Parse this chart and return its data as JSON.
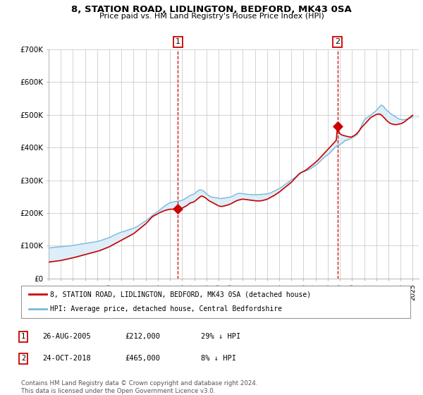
{
  "title": "8, STATION ROAD, LIDLINGTON, BEDFORD, MK43 0SA",
  "subtitle": "Price paid vs. HM Land Registry's House Price Index (HPI)",
  "ylim": [
    0,
    700000
  ],
  "yticks": [
    0,
    100000,
    200000,
    300000,
    400000,
    500000,
    600000,
    700000
  ],
  "ytick_labels": [
    "£0",
    "£100K",
    "£200K",
    "£300K",
    "£400K",
    "£500K",
    "£600K",
    "£700K"
  ],
  "background_color": "#ffffff",
  "plot_bg_color": "#ffffff",
  "grid_color": "#cccccc",
  "hpi_color": "#7ab8d9",
  "price_color": "#cc0000",
  "fill_color": "#ddeef8",
  "purchase1_x": 2005.65,
  "purchase1_y": 212000,
  "purchase2_x": 2018.8,
  "purchase2_y": 465000,
  "legend_label1": "8, STATION ROAD, LIDLINGTON, BEDFORD, MK43 0SA (detached house)",
  "legend_label2": "HPI: Average price, detached house, Central Bedfordshire",
  "table_row1": [
    "1",
    "26-AUG-2005",
    "£212,000",
    "29% ↓ HPI"
  ],
  "table_row2": [
    "2",
    "24-OCT-2018",
    "£465,000",
    "8% ↓ HPI"
  ],
  "footnote": "Contains HM Land Registry data © Crown copyright and database right 2024.\nThis data is licensed under the Open Government Licence v3.0.",
  "xlim_left": 1995.0,
  "xlim_right": 2025.5,
  "hpi_x": [
    1995.0,
    1995.083,
    1995.167,
    1995.25,
    1995.333,
    1995.417,
    1995.5,
    1995.583,
    1995.667,
    1995.75,
    1995.833,
    1995.917,
    1996.0,
    1996.083,
    1996.167,
    1996.25,
    1996.333,
    1996.417,
    1996.5,
    1996.583,
    1996.667,
    1996.75,
    1996.833,
    1996.917,
    1997.0,
    1997.083,
    1997.167,
    1997.25,
    1997.333,
    1997.417,
    1997.5,
    1997.583,
    1997.667,
    1997.75,
    1997.833,
    1997.917,
    1998.0,
    1998.083,
    1998.167,
    1998.25,
    1998.333,
    1998.417,
    1998.5,
    1998.583,
    1998.667,
    1998.75,
    1998.833,
    1998.917,
    1999.0,
    1999.083,
    1999.167,
    1999.25,
    1999.333,
    1999.417,
    1999.5,
    1999.583,
    1999.667,
    1999.75,
    1999.833,
    1999.917,
    2000.0,
    2000.083,
    2000.167,
    2000.25,
    2000.333,
    2000.417,
    2000.5,
    2000.583,
    2000.667,
    2000.75,
    2000.833,
    2000.917,
    2001.0,
    2001.083,
    2001.167,
    2001.25,
    2001.333,
    2001.417,
    2001.5,
    2001.583,
    2001.667,
    2001.75,
    2001.833,
    2001.917,
    2002.0,
    2002.083,
    2002.167,
    2002.25,
    2002.333,
    2002.417,
    2002.5,
    2002.583,
    2002.667,
    2002.75,
    2002.833,
    2002.917,
    2003.0,
    2003.083,
    2003.167,
    2003.25,
    2003.333,
    2003.417,
    2003.5,
    2003.583,
    2003.667,
    2003.75,
    2003.833,
    2003.917,
    2004.0,
    2004.083,
    2004.167,
    2004.25,
    2004.333,
    2004.417,
    2004.5,
    2004.583,
    2004.667,
    2004.75,
    2004.833,
    2004.917,
    2005.0,
    2005.083,
    2005.167,
    2005.25,
    2005.333,
    2005.417,
    2005.5,
    2005.583,
    2005.667,
    2005.75,
    2005.833,
    2005.917,
    2006.0,
    2006.083,
    2006.167,
    2006.25,
    2006.333,
    2006.417,
    2006.5,
    2006.583,
    2006.667,
    2006.75,
    2006.833,
    2006.917,
    2007.0,
    2007.083,
    2007.167,
    2007.25,
    2007.333,
    2007.417,
    2007.5,
    2007.583,
    2007.667,
    2007.75,
    2007.833,
    2007.917,
    2008.0,
    2008.083,
    2008.167,
    2008.25,
    2008.333,
    2008.417,
    2008.5,
    2008.583,
    2008.667,
    2008.75,
    2008.833,
    2008.917,
    2009.0,
    2009.083,
    2009.167,
    2009.25,
    2009.333,
    2009.417,
    2009.5,
    2009.583,
    2009.667,
    2009.75,
    2009.833,
    2009.917,
    2010.0,
    2010.083,
    2010.167,
    2010.25,
    2010.333,
    2010.417,
    2010.5,
    2010.583,
    2010.667,
    2010.75,
    2010.833,
    2010.917,
    2011.0,
    2011.083,
    2011.167,
    2011.25,
    2011.333,
    2011.417,
    2011.5,
    2011.583,
    2011.667,
    2011.75,
    2011.833,
    2011.917,
    2012.0,
    2012.083,
    2012.167,
    2012.25,
    2012.333,
    2012.417,
    2012.5,
    2012.583,
    2012.667,
    2012.75,
    2012.833,
    2012.917,
    2013.0,
    2013.083,
    2013.167,
    2013.25,
    2013.333,
    2013.417,
    2013.5,
    2013.583,
    2013.667,
    2013.75,
    2013.833,
    2013.917,
    2014.0,
    2014.083,
    2014.167,
    2014.25,
    2014.333,
    2014.417,
    2014.5,
    2014.583,
    2014.667,
    2014.75,
    2014.833,
    2014.917,
    2015.0,
    2015.083,
    2015.167,
    2015.25,
    2015.333,
    2015.417,
    2015.5,
    2015.583,
    2015.667,
    2015.75,
    2015.833,
    2015.917,
    2016.0,
    2016.083,
    2016.167,
    2016.25,
    2016.333,
    2016.417,
    2016.5,
    2016.583,
    2016.667,
    2016.75,
    2016.833,
    2016.917,
    2017.0,
    2017.083,
    2017.167,
    2017.25,
    2017.333,
    2017.417,
    2017.5,
    2017.583,
    2017.667,
    2017.75,
    2017.833,
    2017.917,
    2018.0,
    2018.083,
    2018.167,
    2018.25,
    2018.333,
    2018.417,
    2018.5,
    2018.583,
    2018.667,
    2018.75,
    2018.833,
    2018.917,
    2019.0,
    2019.083,
    2019.167,
    2019.25,
    2019.333,
    2019.417,
    2019.5,
    2019.583,
    2019.667,
    2019.75,
    2019.833,
    2019.917,
    2020.0,
    2020.083,
    2020.167,
    2020.25,
    2020.333,
    2020.417,
    2020.5,
    2020.583,
    2020.667,
    2020.75,
    2020.833,
    2020.917,
    2021.0,
    2021.083,
    2021.167,
    2021.25,
    2021.333,
    2021.417,
    2021.5,
    2021.583,
    2021.667,
    2021.75,
    2021.833,
    2021.917,
    2022.0,
    2022.083,
    2022.167,
    2022.25,
    2022.333,
    2022.417,
    2022.5,
    2022.583,
    2022.667,
    2022.75,
    2022.833,
    2022.917,
    2023.0,
    2023.083,
    2023.167,
    2023.25,
    2023.333,
    2023.417,
    2023.5,
    2023.583,
    2023.667,
    2023.75,
    2023.833,
    2023.917,
    2024.0,
    2024.083,
    2024.167,
    2024.25,
    2024.333,
    2024.417,
    2024.5,
    2024.583,
    2024.667,
    2024.75,
    2024.833,
    2024.917,
    2025.0
  ],
  "hpi_y": [
    93000,
    93500,
    94000,
    94500,
    94800,
    95000,
    95500,
    95800,
    96000,
    96200,
    96500,
    96800,
    97000,
    97200,
    97500,
    97800,
    98000,
    98300,
    98700,
    99000,
    99400,
    99800,
    100200,
    100600,
    101000,
    101500,
    102000,
    102500,
    103000,
    103500,
    104000,
    104500,
    105000,
    105500,
    106000,
    106500,
    107000,
    107500,
    108000,
    108500,
    109000,
    109500,
    110000,
    110500,
    111000,
    111500,
    112000,
    112500,
    113000,
    113800,
    114600,
    115500,
    116500,
    117500,
    118600,
    119800,
    121000,
    122000,
    123000,
    124000,
    125000,
    126500,
    128000,
    129500,
    131000,
    132500,
    134000,
    135500,
    137000,
    138500,
    139500,
    140500,
    141500,
    142500,
    143500,
    144500,
    145500,
    146500,
    147500,
    148500,
    149500,
    150500,
    151500,
    152500,
    153500,
    155000,
    156500,
    158000,
    160000,
    162000,
    164000,
    166000,
    168000,
    170000,
    172000,
    174000,
    176000,
    178500,
    181000,
    183500,
    186000,
    188500,
    191000,
    193500,
    196000,
    198500,
    200500,
    202500,
    204500,
    207000,
    209500,
    212000,
    214500,
    217000,
    219500,
    222000,
    224000,
    226000,
    228000,
    230000,
    231000,
    232000,
    233000,
    234000,
    234500,
    235000,
    235500,
    236000,
    236500,
    237000,
    237500,
    238000,
    239000,
    240500,
    242000,
    244000,
    246000,
    248000,
    250000,
    252000,
    254000,
    255000,
    256000,
    257000,
    258000,
    261000,
    264000,
    266500,
    268500,
    270000,
    271000,
    270000,
    269000,
    267000,
    265000,
    262000,
    259000,
    256500,
    254000,
    252000,
    250500,
    249000,
    248500,
    248000,
    247500,
    247000,
    246500,
    246000,
    245000,
    244500,
    244000,
    244500,
    245000,
    245500,
    246000,
    246500,
    247000,
    247500,
    248000,
    248500,
    249000,
    250000,
    251500,
    253000,
    255000,
    257000,
    258500,
    259500,
    260000,
    260200,
    260000,
    259500,
    259000,
    258500,
    258000,
    257800,
    257500,
    257300,
    257000,
    256800,
    256500,
    256200,
    256000,
    256000,
    256000,
    256000,
    256000,
    256200,
    256500,
    256800,
    257000,
    257200,
    257500,
    257800,
    258000,
    258200,
    258500,
    259000,
    260000,
    261000,
    262500,
    264000,
    265500,
    267000,
    268500,
    270000,
    271500,
    273000,
    274500,
    276500,
    278500,
    280500,
    283000,
    285500,
    288000,
    290000,
    292000,
    294000,
    296500,
    299000,
    301000,
    303000,
    305000,
    307000,
    309500,
    312000,
    315000,
    318000,
    320500,
    322500,
    324000,
    325500,
    326500,
    327500,
    328500,
    329500,
    331000,
    332500,
    334000,
    336000,
    338000,
    340000,
    342000,
    344000,
    346000,
    348500,
    351000,
    354000,
    357000,
    360000,
    363000,
    366000,
    369000,
    372000,
    374000,
    376000,
    378000,
    381000,
    384000,
    387000,
    390000,
    393500,
    397000,
    400000,
    402500,
    405000,
    407000,
    408000,
    409000,
    411000,
    413500,
    416000,
    418500,
    421000,
    422000,
    423000,
    424000,
    425500,
    427000,
    428500,
    430000,
    432000,
    434000,
    436000,
    438000,
    440000,
    445000,
    450000,
    458000,
    465000,
    472000,
    478000,
    483000,
    487000,
    490000,
    492000,
    494000,
    496000,
    498000,
    500000,
    503000,
    506000,
    508000,
    510000,
    513000,
    517000,
    521000,
    524000,
    527000,
    530000,
    528000,
    526000,
    522000,
    518000,
    515000,
    512000,
    510000,
    507000,
    504000,
    502000,
    500000,
    498000,
    496000,
    494000,
    492000,
    490000,
    488000,
    487000,
    486000,
    485500,
    485000,
    485000,
    485500,
    486000,
    487000,
    488000,
    489000,
    490000,
    491000,
    492000,
    494000
  ],
  "price_x": [
    1995.0,
    1995.1,
    1995.2,
    1995.3,
    1995.4,
    1995.5,
    1995.6,
    1995.7,
    1995.8,
    1995.9,
    1996.0,
    1996.1,
    1996.2,
    1996.3,
    1996.4,
    1996.5,
    1996.6,
    1996.7,
    1996.8,
    1996.9,
    1997.0,
    1997.1,
    1997.2,
    1997.3,
    1997.4,
    1997.5,
    1997.6,
    1997.7,
    1997.8,
    1997.9,
    1998.0,
    1998.1,
    1998.2,
    1998.3,
    1998.4,
    1998.5,
    1998.6,
    1998.7,
    1998.8,
    1998.9,
    1999.0,
    1999.1,
    1999.2,
    1999.3,
    1999.4,
    1999.5,
    1999.6,
    1999.7,
    1999.8,
    1999.9,
    2000.0,
    2000.1,
    2000.2,
    2000.3,
    2000.4,
    2000.5,
    2000.6,
    2000.7,
    2000.8,
    2000.9,
    2001.0,
    2001.1,
    2001.2,
    2001.3,
    2001.4,
    2001.5,
    2001.6,
    2001.7,
    2001.8,
    2001.9,
    2002.0,
    2002.1,
    2002.2,
    2002.3,
    2002.4,
    2002.5,
    2002.6,
    2002.7,
    2002.8,
    2002.9,
    2003.0,
    2003.1,
    2003.2,
    2003.3,
    2003.4,
    2003.5,
    2003.6,
    2003.7,
    2003.8,
    2003.9,
    2004.0,
    2004.1,
    2004.2,
    2004.3,
    2004.4,
    2004.5,
    2004.6,
    2004.7,
    2004.8,
    2004.9,
    2005.0,
    2005.1,
    2005.2,
    2005.3,
    2005.4,
    2005.5,
    2005.65,
    2005.7,
    2005.8,
    2005.9,
    2006.0,
    2006.1,
    2006.2,
    2006.3,
    2006.4,
    2006.5,
    2006.6,
    2006.7,
    2006.8,
    2006.9,
    2007.0,
    2007.1,
    2007.2,
    2007.3,
    2007.4,
    2007.5,
    2007.6,
    2007.7,
    2007.8,
    2007.9,
    2008.0,
    2008.1,
    2008.2,
    2008.3,
    2008.4,
    2008.5,
    2008.6,
    2008.7,
    2008.8,
    2008.9,
    2009.0,
    2009.1,
    2009.2,
    2009.3,
    2009.4,
    2009.5,
    2009.6,
    2009.7,
    2009.8,
    2009.9,
    2010.0,
    2010.1,
    2010.2,
    2010.3,
    2010.4,
    2010.5,
    2010.6,
    2010.7,
    2010.8,
    2010.9,
    2011.0,
    2011.1,
    2011.2,
    2011.3,
    2011.4,
    2011.5,
    2011.6,
    2011.7,
    2011.8,
    2011.9,
    2012.0,
    2012.1,
    2012.2,
    2012.3,
    2012.4,
    2012.5,
    2012.6,
    2012.7,
    2012.8,
    2012.9,
    2013.0,
    2013.1,
    2013.2,
    2013.3,
    2013.4,
    2013.5,
    2013.6,
    2013.7,
    2013.8,
    2013.9,
    2014.0,
    2014.1,
    2014.2,
    2014.3,
    2014.4,
    2014.5,
    2014.6,
    2014.7,
    2014.8,
    2014.9,
    2015.0,
    2015.1,
    2015.2,
    2015.3,
    2015.4,
    2015.5,
    2015.6,
    2015.7,
    2015.8,
    2015.9,
    2016.0,
    2016.1,
    2016.2,
    2016.3,
    2016.4,
    2016.5,
    2016.6,
    2016.7,
    2016.8,
    2016.9,
    2017.0,
    2017.1,
    2017.2,
    2017.3,
    2017.4,
    2017.5,
    2017.6,
    2017.7,
    2017.8,
    2017.9,
    2018.0,
    2018.1,
    2018.2,
    2018.3,
    2018.4,
    2018.5,
    2018.6,
    2018.7,
    2018.8,
    2018.9,
    2019.0,
    2019.1,
    2019.2,
    2019.3,
    2019.4,
    2019.5,
    2019.6,
    2019.7,
    2019.8,
    2019.9,
    2020.0,
    2020.1,
    2020.2,
    2020.3,
    2020.4,
    2020.5,
    2020.6,
    2020.7,
    2020.8,
    2020.9,
    2021.0,
    2021.1,
    2021.2,
    2021.3,
    2021.4,
    2021.5,
    2021.6,
    2021.7,
    2021.8,
    2021.9,
    2022.0,
    2022.1,
    2022.2,
    2022.3,
    2022.4,
    2022.5,
    2022.6,
    2022.7,
    2022.8,
    2022.9,
    2023.0,
    2023.1,
    2023.2,
    2023.3,
    2023.4,
    2023.5,
    2023.6,
    2023.7,
    2023.8,
    2023.9,
    2024.0,
    2024.1,
    2024.2,
    2024.3,
    2024.4,
    2024.5,
    2024.6,
    2024.7,
    2024.8,
    2024.9,
    2025.0
  ],
  "price_y": [
    50000,
    50500,
    51000,
    51500,
    52000,
    52500,
    53000,
    53500,
    54000,
    54500,
    55000,
    55800,
    56600,
    57400,
    58200,
    59000,
    59800,
    60600,
    61400,
    62200,
    63000,
    64000,
    65000,
    66000,
    67000,
    68000,
    69000,
    70000,
    71000,
    72000,
    73000,
    74000,
    75000,
    76000,
    77000,
    78000,
    79000,
    80000,
    81000,
    82000,
    83000,
    84000,
    85000,
    86500,
    88000,
    89500,
    91000,
    92500,
    94000,
    95500,
    97000,
    99000,
    101000,
    103000,
    105000,
    107000,
    109000,
    111000,
    113000,
    115000,
    117000,
    119000,
    121000,
    123000,
    125000,
    127000,
    129000,
    131000,
    133000,
    135000,
    137000,
    140000,
    143000,
    146000,
    149000,
    152000,
    155000,
    158000,
    161000,
    164000,
    167000,
    171000,
    175000,
    179000,
    183000,
    187000,
    190000,
    192000,
    194000,
    196000,
    198000,
    200000,
    202000,
    203500,
    205000,
    206500,
    208000,
    209000,
    210000,
    211000,
    211500,
    211700,
    211800,
    211900,
    212000,
    212000,
    212000,
    212500,
    213000,
    214000,
    215000,
    217000,
    219000,
    221000,
    223000,
    226000,
    229000,
    231000,
    232000,
    233000,
    235000,
    238000,
    241000,
    244000,
    247000,
    250000,
    252000,
    251000,
    249000,
    247000,
    244000,
    241000,
    238000,
    236000,
    234000,
    232000,
    230000,
    228000,
    226000,
    224000,
    222000,
    221000,
    220000,
    220500,
    221000,
    222000,
    223000,
    224000,
    225000,
    226500,
    228000,
    230000,
    232000,
    234000,
    236000,
    238000,
    239000,
    240000,
    241000,
    242000,
    242500,
    242000,
    241500,
    241000,
    240500,
    240000,
    239500,
    239000,
    238500,
    238000,
    237500,
    237200,
    237000,
    237000,
    237200,
    237500,
    238000,
    239000,
    240000,
    241000,
    242000,
    244000,
    246000,
    248000,
    250000,
    252000,
    254000,
    256500,
    259000,
    261500,
    264000,
    267000,
    270000,
    273000,
    276000,
    279000,
    282000,
    285000,
    288000,
    291000,
    294000,
    298000,
    302000,
    306000,
    310000,
    314000,
    318000,
    321000,
    323500,
    325500,
    327000,
    329000,
    331500,
    334000,
    337000,
    340000,
    343000,
    346000,
    349000,
    352000,
    355000,
    358500,
    362000,
    366000,
    370000,
    374000,
    378000,
    382000,
    386000,
    390000,
    394000,
    398000,
    402000,
    406000,
    410000,
    414000,
    418000,
    422000,
    465000,
    450000,
    442000,
    440000,
    438000,
    437000,
    436000,
    435000,
    434000,
    433000,
    432500,
    432000,
    433000,
    435000,
    437000,
    440000,
    443000,
    447000,
    452000,
    457000,
    462000,
    466000,
    470000,
    474000,
    478000,
    482000,
    486000,
    490000,
    493000,
    495000,
    497000,
    499000,
    501000,
    502000,
    502500,
    502000,
    500000,
    497000,
    493000,
    489000,
    485000,
    481000,
    478000,
    475000,
    473000,
    472000,
    471000,
    470500,
    470000,
    470500,
    471000,
    472000,
    473000,
    474000,
    476000,
    478000,
    481000,
    484000,
    487000,
    490000,
    493000,
    496000,
    499000
  ]
}
